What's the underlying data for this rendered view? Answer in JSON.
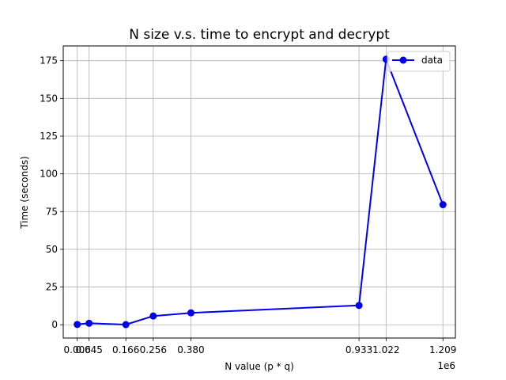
{
  "chart_data": {
    "type": "line",
    "title": "N size v.s. time to encrypt and decrypt",
    "xlabel": "N value (p * q)",
    "ylabel": "Time (seconds)",
    "x_offset_label": "1e6",
    "x_scale": 1000000,
    "xlim": [
      -40000,
      1250000
    ],
    "ylim": [
      -8.8,
      184.8
    ],
    "grid": true,
    "legend_position": "top-right",
    "line_color": "#0000ee",
    "x_ticks": [
      {
        "value": 6000,
        "label": "0.006"
      },
      {
        "value": 45000,
        "label": "0.045"
      },
      {
        "value": 166000,
        "label": "0.166"
      },
      {
        "value": 256000,
        "label": "0.256"
      },
      {
        "value": 380000,
        "label": "0.380"
      },
      {
        "value": 933000,
        "label": "0.933"
      },
      {
        "value": 1022000,
        "label": "1.022"
      },
      {
        "value": 1209000,
        "label": "1.209"
      }
    ],
    "y_ticks": [
      0,
      25,
      50,
      75,
      100,
      125,
      150,
      175
    ],
    "series": [
      {
        "name": "data",
        "x": [
          6000,
          45000,
          166000,
          256000,
          380000,
          933000,
          1022000,
          1209000
        ],
        "y": [
          0.2,
          1.0,
          0.1,
          5.8,
          7.9,
          12.8,
          176.0,
          79.6
        ]
      }
    ]
  }
}
